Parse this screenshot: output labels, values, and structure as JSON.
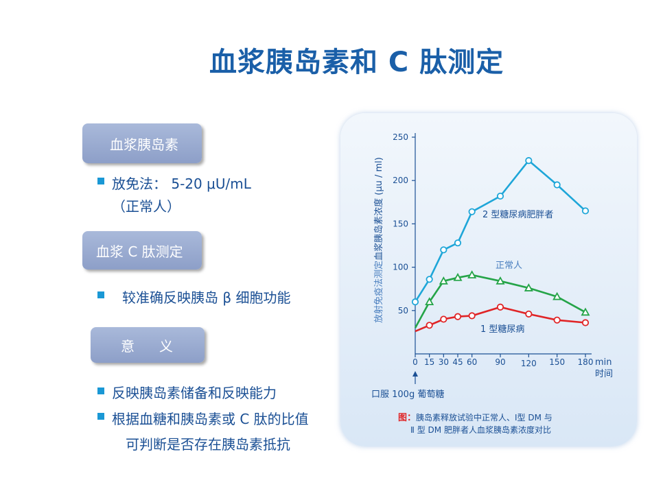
{
  "title": "血浆胰岛素和 C 肽测定",
  "box1": "血浆胰岛素",
  "bullet1a": "放免法：  5-20 μU/mL",
  "bullet1b": "（正常人）",
  "box2": "血浆 C 肽测定",
  "bullet2": "较准确反映胰岛 β 细胞功能",
  "box3_a": "意",
  "box3_b": "义",
  "bullet3": "反映胰岛素储备和反映能力",
  "bullet4a": "根据血糖和胰岛素或 C 肽的比值",
  "bullet4b": "可判断是否存在胰岛素抵抗",
  "figure": {
    "arrow_label": "口服 100g 葡萄糖",
    "caption_prefix": "图：",
    "caption_line1": "胰岛素释放试验中正常人、Ⅰ型 DM 与",
    "caption_line2": "Ⅱ 型 DM 肥胖者人血浆胰岛素浓度对比",
    "colors": {
      "type2_obese": "#1ea6d8",
      "normal": "#25a448",
      "type1": "#e02426"
    }
  },
  "chart_data": {
    "type": "line",
    "ylabel_prefix": "放射免疫法测定",
    "ylabel_main": "血浆胰岛素浓度 (μu / ml)",
    "xlabel_unit": "min",
    "xlabel": "时间",
    "x": [
      0,
      15,
      30,
      45,
      60,
      90,
      120,
      150,
      180
    ],
    "xticks": [
      "0",
      "15",
      "30",
      "45",
      "60",
      "90",
      "120",
      "150",
      "180"
    ],
    "yticks": [
      "50",
      "100",
      "150",
      "200",
      "250"
    ],
    "xlim": [
      0,
      180
    ],
    "ylim": [
      0,
      250
    ],
    "series": [
      {
        "name": "2 型糖尿病肥胖者",
        "marker": "circle",
        "color": "#1ea6d8",
        "values": [
          60,
          86,
          120,
          128,
          164,
          182,
          223,
          195,
          165
        ]
      },
      {
        "name": "正常人",
        "marker": "triangle",
        "color": "#25a448",
        "values": [
          30,
          60,
          84,
          88,
          91,
          84,
          76,
          66,
          48
        ]
      },
      {
        "name": "1 型糖尿病",
        "marker": "circle",
        "color": "#e02426",
        "values": [
          26,
          33,
          40,
          43,
          44,
          54,
          46,
          39,
          36
        ]
      }
    ]
  }
}
